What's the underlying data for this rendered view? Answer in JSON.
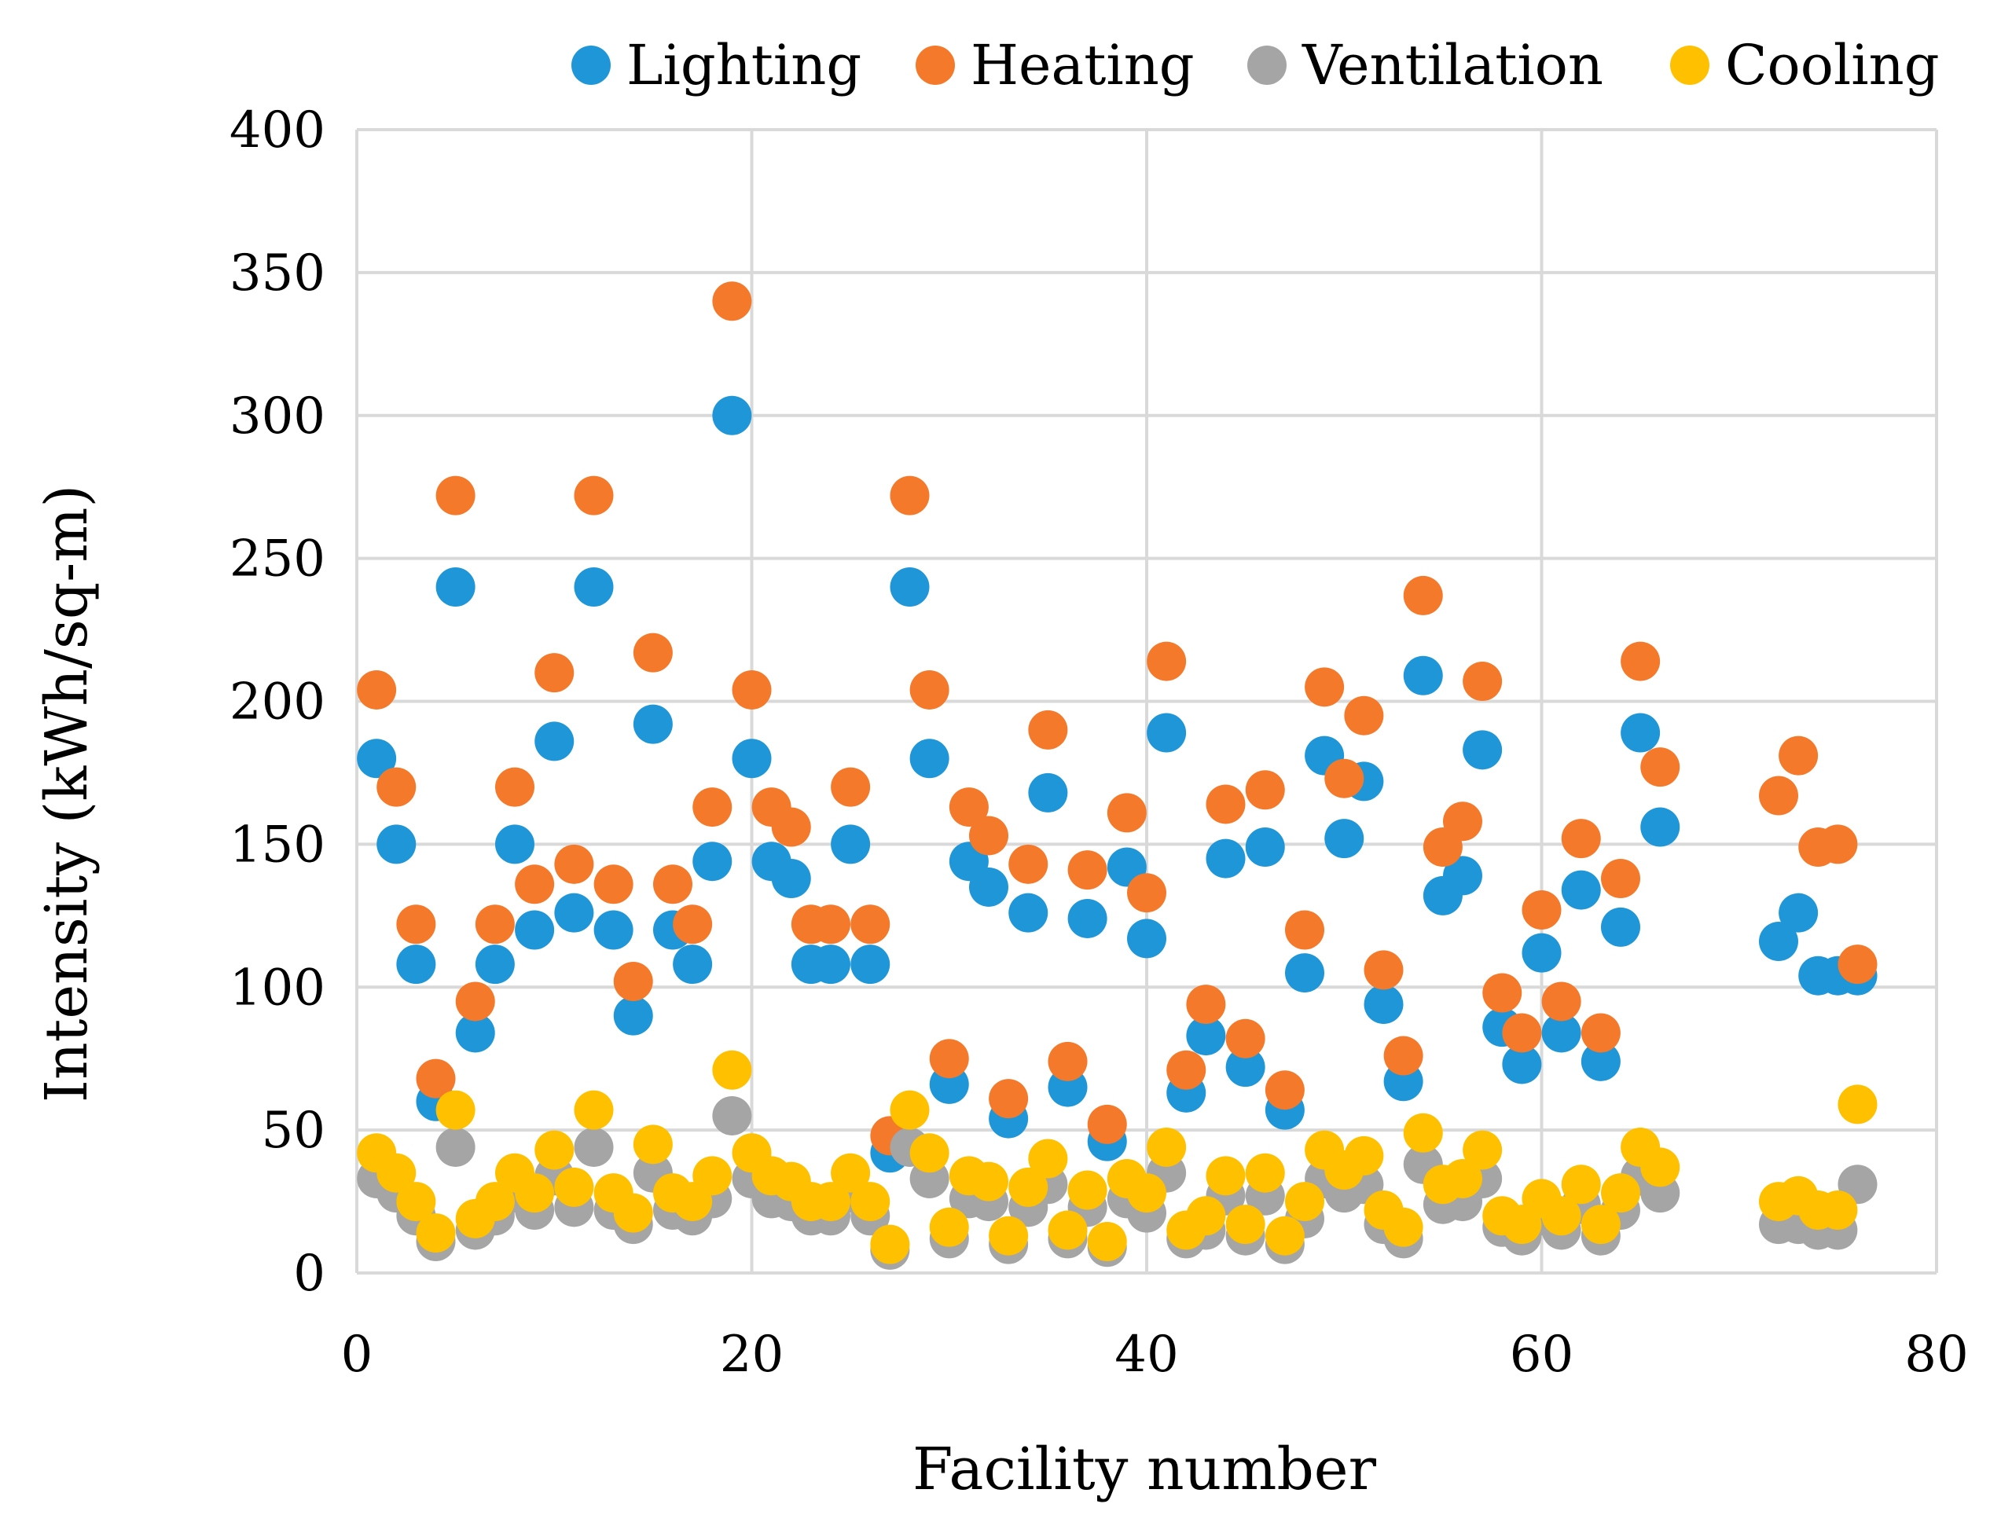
{
  "chart_data": {
    "type": "scatter",
    "title": "",
    "xlabel": "Facility number",
    "ylabel": "Intensity (kWh/sq-m)",
    "xlim": [
      0,
      80
    ],
    "ylim": [
      0,
      400
    ],
    "x_ticks": [
      "0",
      "20",
      "40",
      "60",
      "80"
    ],
    "y_ticks": [
      "0",
      "50",
      "100",
      "150",
      "200",
      "250",
      "300",
      "350",
      "400"
    ],
    "grid": true,
    "legend_position": "top",
    "series": [
      {
        "name": "Lighting",
        "color": "#1f96d8",
        "points": [
          [
            1,
            180
          ],
          [
            2,
            150
          ],
          [
            3,
            108
          ],
          [
            4,
            60
          ],
          [
            5,
            240
          ],
          [
            6,
            84
          ],
          [
            7,
            108
          ],
          [
            8,
            150
          ],
          [
            9,
            120
          ],
          [
            10,
            186
          ],
          [
            11,
            126
          ],
          [
            12,
            240
          ],
          [
            13,
            120
          ],
          [
            14,
            90
          ],
          [
            15,
            192
          ],
          [
            16,
            120
          ],
          [
            17,
            108
          ],
          [
            18,
            144
          ],
          [
            19,
            300
          ],
          [
            20,
            180
          ],
          [
            21,
            144
          ],
          [
            22,
            138
          ],
          [
            23,
            108
          ],
          [
            24,
            108
          ],
          [
            25,
            150
          ],
          [
            26,
            108
          ],
          [
            27,
            42
          ],
          [
            28,
            240
          ],
          [
            29,
            180
          ],
          [
            30,
            66
          ],
          [
            31,
            144
          ],
          [
            32,
            135
          ],
          [
            33,
            54
          ],
          [
            34,
            126
          ],
          [
            35,
            168
          ],
          [
            36,
            65
          ],
          [
            37,
            124
          ],
          [
            38,
            46
          ],
          [
            39,
            142
          ],
          [
            40,
            117
          ],
          [
            41,
            189
          ],
          [
            42,
            63
          ],
          [
            43,
            83
          ],
          [
            44,
            145
          ],
          [
            45,
            72
          ],
          [
            46,
            149
          ],
          [
            47,
            57
          ],
          [
            48,
            105
          ],
          [
            49,
            181
          ],
          [
            50,
            152
          ],
          [
            51,
            172
          ],
          [
            52,
            94
          ],
          [
            53,
            67
          ],
          [
            54,
            209
          ],
          [
            55,
            132
          ],
          [
            56,
            139
          ],
          [
            57,
            183
          ],
          [
            58,
            86
          ],
          [
            59,
            73
          ],
          [
            60,
            112
          ],
          [
            61,
            84
          ],
          [
            62,
            134
          ],
          [
            63,
            74
          ],
          [
            64,
            121
          ],
          [
            65,
            189
          ],
          [
            66,
            156
          ],
          [
            72,
            116
          ],
          [
            73,
            126
          ],
          [
            74,
            104
          ],
          [
            75,
            104
          ],
          [
            76,
            104
          ]
        ]
      },
      {
        "name": "Heating",
        "color": "#f5792a",
        "points": [
          [
            1,
            204
          ],
          [
            2,
            170
          ],
          [
            3,
            122
          ],
          [
            4,
            68
          ],
          [
            5,
            272
          ],
          [
            6,
            95
          ],
          [
            7,
            122
          ],
          [
            8,
            170
          ],
          [
            9,
            136
          ],
          [
            10,
            210
          ],
          [
            11,
            143
          ],
          [
            12,
            272
          ],
          [
            13,
            136
          ],
          [
            14,
            102
          ],
          [
            15,
            217
          ],
          [
            16,
            136
          ],
          [
            17,
            122
          ],
          [
            18,
            163
          ],
          [
            19,
            340
          ],
          [
            20,
            204
          ],
          [
            21,
            163
          ],
          [
            22,
            156
          ],
          [
            23,
            122
          ],
          [
            24,
            122
          ],
          [
            25,
            170
          ],
          [
            26,
            122
          ],
          [
            27,
            48
          ],
          [
            28,
            272
          ],
          [
            29,
            204
          ],
          [
            30,
            75
          ],
          [
            31,
            163
          ],
          [
            32,
            153
          ],
          [
            33,
            61
          ],
          [
            34,
            143
          ],
          [
            35,
            190
          ],
          [
            36,
            74
          ],
          [
            37,
            141
          ],
          [
            38,
            52
          ],
          [
            39,
            161
          ],
          [
            40,
            133
          ],
          [
            41,
            214
          ],
          [
            42,
            71
          ],
          [
            43,
            94
          ],
          [
            44,
            164
          ],
          [
            45,
            82
          ],
          [
            46,
            169
          ],
          [
            47,
            64
          ],
          [
            48,
            120
          ],
          [
            49,
            205
          ],
          [
            50,
            173
          ],
          [
            51,
            195
          ],
          [
            52,
            106
          ],
          [
            53,
            76
          ],
          [
            54,
            237
          ],
          [
            55,
            149
          ],
          [
            56,
            158
          ],
          [
            57,
            207
          ],
          [
            58,
            98
          ],
          [
            59,
            84
          ],
          [
            60,
            127
          ],
          [
            61,
            95
          ],
          [
            62,
            152
          ],
          [
            63,
            84
          ],
          [
            64,
            138
          ],
          [
            65,
            214
          ],
          [
            66,
            177
          ],
          [
            72,
            167
          ],
          [
            73,
            181
          ],
          [
            74,
            149
          ],
          [
            75,
            150
          ],
          [
            76,
            108
          ]
        ]
      },
      {
        "name": "Ventilation",
        "color": "#a5a5a5",
        "points": [
          [
            1,
            33
          ],
          [
            2,
            28
          ],
          [
            3,
            20
          ],
          [
            4,
            11
          ],
          [
            5,
            44
          ],
          [
            6,
            15
          ],
          [
            7,
            20
          ],
          [
            8,
            28
          ],
          [
            9,
            22
          ],
          [
            10,
            34
          ],
          [
            11,
            23
          ],
          [
            12,
            44
          ],
          [
            13,
            22
          ],
          [
            14,
            17
          ],
          [
            15,
            35
          ],
          [
            16,
            22
          ],
          [
            17,
            20
          ],
          [
            18,
            26
          ],
          [
            19,
            55
          ],
          [
            20,
            33
          ],
          [
            21,
            26
          ],
          [
            22,
            25
          ],
          [
            23,
            20
          ],
          [
            24,
            20
          ],
          [
            25,
            28
          ],
          [
            26,
            20
          ],
          [
            27,
            8
          ],
          [
            28,
            44
          ],
          [
            29,
            33
          ],
          [
            30,
            12
          ],
          [
            31,
            26
          ],
          [
            32,
            25
          ],
          [
            33,
            10
          ],
          [
            34,
            23
          ],
          [
            35,
            31
          ],
          [
            36,
            12
          ],
          [
            37,
            23
          ],
          [
            38,
            9
          ],
          [
            39,
            26
          ],
          [
            40,
            21
          ],
          [
            41,
            35
          ],
          [
            42,
            12
          ],
          [
            43,
            15
          ],
          [
            44,
            27
          ],
          [
            45,
            13
          ],
          [
            46,
            27
          ],
          [
            47,
            10
          ],
          [
            48,
            19
          ],
          [
            49,
            33
          ],
          [
            50,
            28
          ],
          [
            51,
            31
          ],
          [
            52,
            17
          ],
          [
            53,
            12
          ],
          [
            54,
            38
          ],
          [
            55,
            24
          ],
          [
            56,
            25
          ],
          [
            57,
            33
          ],
          [
            58,
            16
          ],
          [
            59,
            13
          ],
          [
            60,
            20
          ],
          [
            61,
            15
          ],
          [
            62,
            24
          ],
          [
            63,
            13
          ],
          [
            64,
            22
          ],
          [
            65,
            34
          ],
          [
            66,
            28
          ],
          [
            72,
            17
          ],
          [
            73,
            17
          ],
          [
            74,
            15
          ],
          [
            75,
            15
          ],
          [
            76,
            31
          ]
        ]
      },
      {
        "name": "Cooling",
        "color": "#ffc000",
        "points": [
          [
            1,
            42
          ],
          [
            2,
            35
          ],
          [
            3,
            25
          ],
          [
            4,
            14
          ],
          [
            5,
            57
          ],
          [
            6,
            19
          ],
          [
            7,
            25
          ],
          [
            8,
            35
          ],
          [
            9,
            28
          ],
          [
            10,
            43
          ],
          [
            11,
            30
          ],
          [
            12,
            57
          ],
          [
            13,
            28
          ],
          [
            14,
            21
          ],
          [
            15,
            45
          ],
          [
            16,
            28
          ],
          [
            17,
            25
          ],
          [
            18,
            34
          ],
          [
            19,
            71
          ],
          [
            20,
            42
          ],
          [
            21,
            34
          ],
          [
            22,
            32
          ],
          [
            23,
            25
          ],
          [
            24,
            25
          ],
          [
            25,
            35
          ],
          [
            26,
            25
          ],
          [
            27,
            10
          ],
          [
            28,
            57
          ],
          [
            29,
            42
          ],
          [
            30,
            16
          ],
          [
            31,
            34
          ],
          [
            32,
            32
          ],
          [
            33,
            13
          ],
          [
            34,
            30
          ],
          [
            35,
            40
          ],
          [
            36,
            15
          ],
          [
            37,
            29
          ],
          [
            38,
            11
          ],
          [
            39,
            33
          ],
          [
            40,
            28
          ],
          [
            41,
            44
          ],
          [
            42,
            15
          ],
          [
            43,
            20
          ],
          [
            44,
            34
          ],
          [
            45,
            17
          ],
          [
            46,
            35
          ],
          [
            47,
            13
          ],
          [
            48,
            25
          ],
          [
            49,
            43
          ],
          [
            50,
            36
          ],
          [
            51,
            41
          ],
          [
            52,
            22
          ],
          [
            53,
            16
          ],
          [
            54,
            49
          ],
          [
            55,
            31
          ],
          [
            56,
            33
          ],
          [
            57,
            43
          ],
          [
            58,
            20
          ],
          [
            59,
            17
          ],
          [
            60,
            26
          ],
          [
            61,
            20
          ],
          [
            62,
            31
          ],
          [
            63,
            17
          ],
          [
            64,
            28
          ],
          [
            65,
            44
          ],
          [
            66,
            37
          ],
          [
            72,
            25
          ],
          [
            73,
            27
          ],
          [
            74,
            22
          ],
          [
            75,
            22
          ],
          [
            76,
            59
          ]
        ]
      }
    ]
  }
}
